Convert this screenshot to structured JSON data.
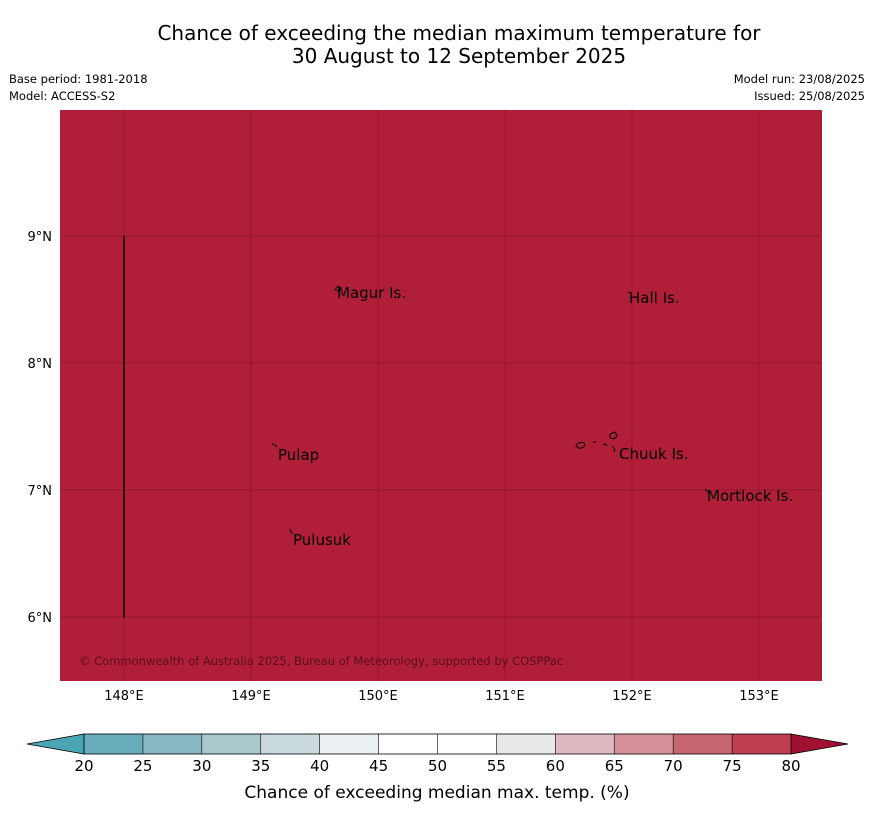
{
  "header": {
    "title_line1": "Chance of exceeding the median maximum temperature for",
    "title_line2": "30 August to 12 September 2025",
    "base_period": "Base period: 1981-2018",
    "model": "Model: ACCESS-S2",
    "model_run": "Model run: 23/08/2025",
    "issued": "Issued: 25/08/2025"
  },
  "map": {
    "fill_color": "#b01e38",
    "lat_labels": [
      "9°N",
      "8°N",
      "7°N",
      "6°N"
    ],
    "lon_labels": [
      "148°E",
      "149°E",
      "150°E",
      "151°E",
      "152°E",
      "153°E"
    ],
    "places": [
      {
        "name": "Magur Is."
      },
      {
        "name": "Hall Is."
      },
      {
        "name": "Pulap"
      },
      {
        "name": "Chuuk Is."
      },
      {
        "name": "Mortlock Is."
      },
      {
        "name": "Pulusuk"
      }
    ],
    "copyright": "© Commonwealth of Australia 2025, Bureau of Meteorology, supported by COSPPac"
  },
  "colorbar": {
    "ticks": [
      "20",
      "25",
      "30",
      "35",
      "40",
      "45",
      "50",
      "55",
      "60",
      "65",
      "70",
      "75",
      "80"
    ],
    "colors": [
      "#67adbb",
      "#88b6c1",
      "#a8c8cc",
      "#c9d9de",
      "#ebf0f2",
      "#ffffff",
      "#ffffff",
      "#e8e8e8",
      "#e0b8bf",
      "#d6929a",
      "#c96770",
      "#be3e50"
    ],
    "under_color": "#4ba6b5",
    "over_color": "#a01030",
    "label": "Chance of exceeding median max. temp. (%)"
  }
}
